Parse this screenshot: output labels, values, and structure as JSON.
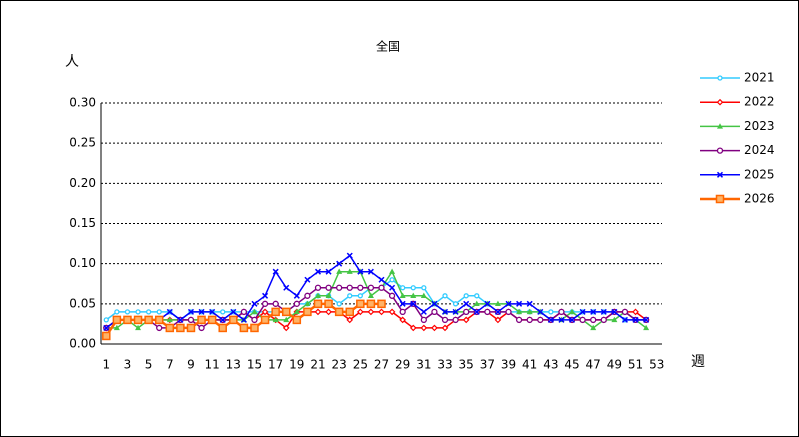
{
  "chart_data": {
    "type": "line",
    "title": "全国",
    "y_label": "人",
    "x_label": "週",
    "categories": [
      1,
      null,
      3,
      null,
      5,
      null,
      7,
      null,
      9,
      null,
      11,
      null,
      13,
      null,
      15,
      null,
      17,
      null,
      19,
      null,
      21,
      null,
      23,
      null,
      25,
      null,
      27,
      null,
      29,
      null,
      31,
      null,
      33,
      null,
      35,
      null,
      37,
      null,
      39,
      null,
      41,
      null,
      43,
      null,
      45,
      null,
      47,
      null,
      49,
      null,
      51,
      null,
      53
    ],
    "ylim": [
      0,
      0.3
    ],
    "yticks": [
      {
        "value": 0,
        "label": "0.00"
      },
      {
        "value": 0.05,
        "label": "0.05"
      },
      {
        "value": 0.1,
        "label": "0.10"
      },
      {
        "value": 0.15,
        "label": "0.15"
      },
      {
        "value": 0.2,
        "label": "0.20"
      },
      {
        "value": 0.25,
        "label": "0.25"
      },
      {
        "value": 0.3,
        "label": "0.30"
      }
    ],
    "grid": true,
    "legend": "right",
    "series": [
      {
        "name": "2021",
        "color": "#33ccff",
        "marker": "circle",
        "values": [
          0.03,
          0.04,
          0.04,
          0.04,
          0.04,
          0.04,
          0.04,
          0.03,
          0.04,
          0.04,
          0.04,
          0.04,
          0.04,
          0.04,
          0.04,
          0.04,
          0.04,
          0.04,
          0.05,
          0.05,
          0.06,
          0.06,
          0.05,
          0.06,
          0.06,
          0.07,
          0.07,
          0.08,
          0.07,
          0.07,
          0.07,
          0.05,
          0.06,
          0.05,
          0.06,
          0.06,
          0.05,
          0.04,
          0.04,
          0.04,
          0.04,
          0.04,
          0.04,
          0.04,
          0.04,
          0.04,
          0.04,
          0.04,
          0.04,
          0.03,
          0.03,
          0.03,
          null
        ]
      },
      {
        "name": "2022",
        "color": "#ff0000",
        "marker": "diamond",
        "values": [
          0.02,
          0.03,
          0.03,
          0.03,
          0.03,
          0.03,
          0.03,
          0.03,
          0.03,
          0.03,
          0.03,
          0.03,
          0.03,
          0.04,
          0.03,
          0.04,
          0.03,
          0.02,
          0.04,
          0.04,
          0.04,
          0.04,
          0.04,
          0.03,
          0.04,
          0.04,
          0.04,
          0.04,
          0.03,
          0.02,
          0.02,
          0.02,
          0.02,
          0.03,
          0.03,
          0.04,
          0.04,
          0.03,
          0.04,
          0.03,
          0.03,
          0.03,
          0.03,
          0.04,
          0.03,
          0.03,
          0.03,
          0.03,
          0.04,
          0.04,
          0.04,
          0.03,
          null
        ]
      },
      {
        "name": "2023",
        "color": "#44c444",
        "marker": "triangle",
        "values": [
          0.02,
          0.02,
          0.03,
          0.02,
          0.03,
          0.03,
          0.03,
          0.03,
          0.03,
          0.03,
          0.03,
          0.03,
          0.03,
          0.03,
          0.04,
          0.03,
          0.03,
          0.03,
          0.04,
          0.05,
          0.06,
          0.06,
          0.09,
          0.09,
          0.09,
          0.06,
          0.07,
          0.09,
          0.06,
          0.06,
          0.06,
          0.05,
          0.04,
          0.04,
          0.04,
          0.05,
          0.05,
          0.05,
          0.05,
          0.04,
          0.04,
          0.04,
          0.03,
          0.03,
          0.04,
          0.03,
          0.02,
          0.03,
          0.03,
          0.04,
          0.03,
          0.02,
          null
        ]
      },
      {
        "name": "2024",
        "color": "#800080",
        "marker": "circle",
        "values": [
          0.02,
          0.03,
          0.03,
          0.03,
          0.03,
          0.02,
          0.02,
          0.03,
          0.03,
          0.02,
          0.03,
          0.03,
          0.03,
          0.04,
          0.03,
          0.05,
          0.05,
          0.04,
          0.05,
          0.06,
          0.07,
          0.07,
          0.07,
          0.07,
          0.07,
          0.07,
          0.07,
          0.06,
          0.04,
          0.05,
          0.03,
          0.04,
          0.03,
          0.03,
          0.04,
          0.04,
          0.04,
          0.04,
          0.04,
          0.03,
          0.03,
          0.03,
          0.03,
          0.04,
          0.03,
          0.03,
          0.03,
          0.03,
          0.04,
          0.04,
          0.03,
          0.03,
          null
        ]
      },
      {
        "name": "2025",
        "color": "#0000ff",
        "marker": "x",
        "values": [
          0.02,
          0.03,
          0.03,
          0.03,
          0.03,
          0.03,
          0.04,
          0.03,
          0.04,
          0.04,
          0.04,
          0.03,
          0.04,
          0.03,
          0.05,
          0.06,
          0.09,
          0.07,
          0.06,
          0.08,
          0.09,
          0.09,
          0.1,
          0.11,
          0.09,
          0.09,
          0.08,
          0.07,
          0.05,
          0.05,
          0.04,
          0.05,
          0.04,
          0.04,
          0.05,
          0.04,
          0.05,
          0.04,
          0.05,
          0.05,
          0.05,
          0.04,
          0.03,
          0.03,
          0.03,
          0.04,
          0.04,
          0.04,
          0.04,
          0.03,
          0.03,
          0.03,
          null
        ]
      },
      {
        "name": "2026",
        "color": "#ff6600",
        "marker": "square",
        "values": [
          0.01,
          0.03,
          0.03,
          0.03,
          0.03,
          0.03,
          0.02,
          0.02,
          0.02,
          0.03,
          0.03,
          0.02,
          0.03,
          0.02,
          0.02,
          0.03,
          0.04,
          0.04,
          0.03,
          0.04,
          0.05,
          0.05,
          0.04,
          0.04,
          0.05,
          0.05,
          0.05,
          null,
          null,
          null,
          null,
          null,
          null,
          null,
          null,
          null,
          null,
          null,
          null,
          null,
          null,
          null,
          null,
          null,
          null,
          null,
          null,
          null,
          null,
          null,
          null,
          null,
          null
        ]
      }
    ]
  }
}
